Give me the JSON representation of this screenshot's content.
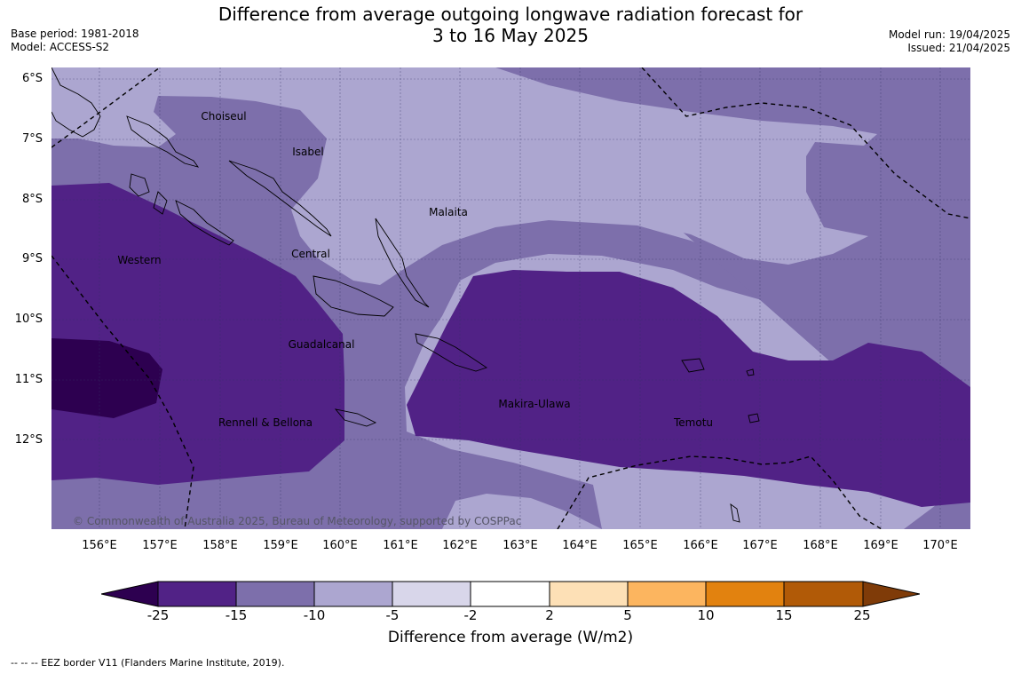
{
  "title_line1": "Difference from average outgoing longwave radiation forecast for",
  "title_line2": "3 to 16 May 2025",
  "meta_left": {
    "base_period": "Base period: 1981-2018",
    "model": "Model: ACCESS-S2"
  },
  "meta_right": {
    "model_run": "Model run: 19/04/2025",
    "issued": "Issued: 21/04/2025"
  },
  "lat_labels": [
    "6°S",
    "7°S",
    "8°S",
    "9°S",
    "10°S",
    "11°S",
    "12°S"
  ],
  "lon_labels": [
    "156°E",
    "157°E",
    "158°E",
    "159°E",
    "160°E",
    "161°E",
    "162°E",
    "163°E",
    "164°E",
    "165°E",
    "166°E",
    "167°E",
    "168°E",
    "169°E",
    "170°E"
  ],
  "regions": [
    {
      "name": "Choiseul"
    },
    {
      "name": "Isabel"
    },
    {
      "name": "Malaita"
    },
    {
      "name": "Western"
    },
    {
      "name": "Central"
    },
    {
      "name": "Guadalcanal"
    },
    {
      "name": "Makira-Ulawa"
    },
    {
      "name": "Rennell & Bellona"
    },
    {
      "name": "Temotu"
    }
  ],
  "copyright": "© Commonwealth of Australia 2025, Bureau of Meteorology, supported by COSPPac",
  "colorbar": {
    "ticks": [
      "-25",
      "-15",
      "-10",
      "-5",
      "-2",
      "2",
      "5",
      "10",
      "15",
      "25"
    ],
    "colors": [
      "#2d0050",
      "#512286",
      "#7d6fab",
      "#aca6d0",
      "#d8d6ea",
      "#ffffff",
      "#fde0b6",
      "#fcb55f",
      "#e2820f",
      "#b15a07",
      "#7f3b08"
    ],
    "label": "Difference from average (W/m2)"
  },
  "footnote": "--  --  -- EEZ border V11 (Flanders Marine Institute, 2019)."
}
